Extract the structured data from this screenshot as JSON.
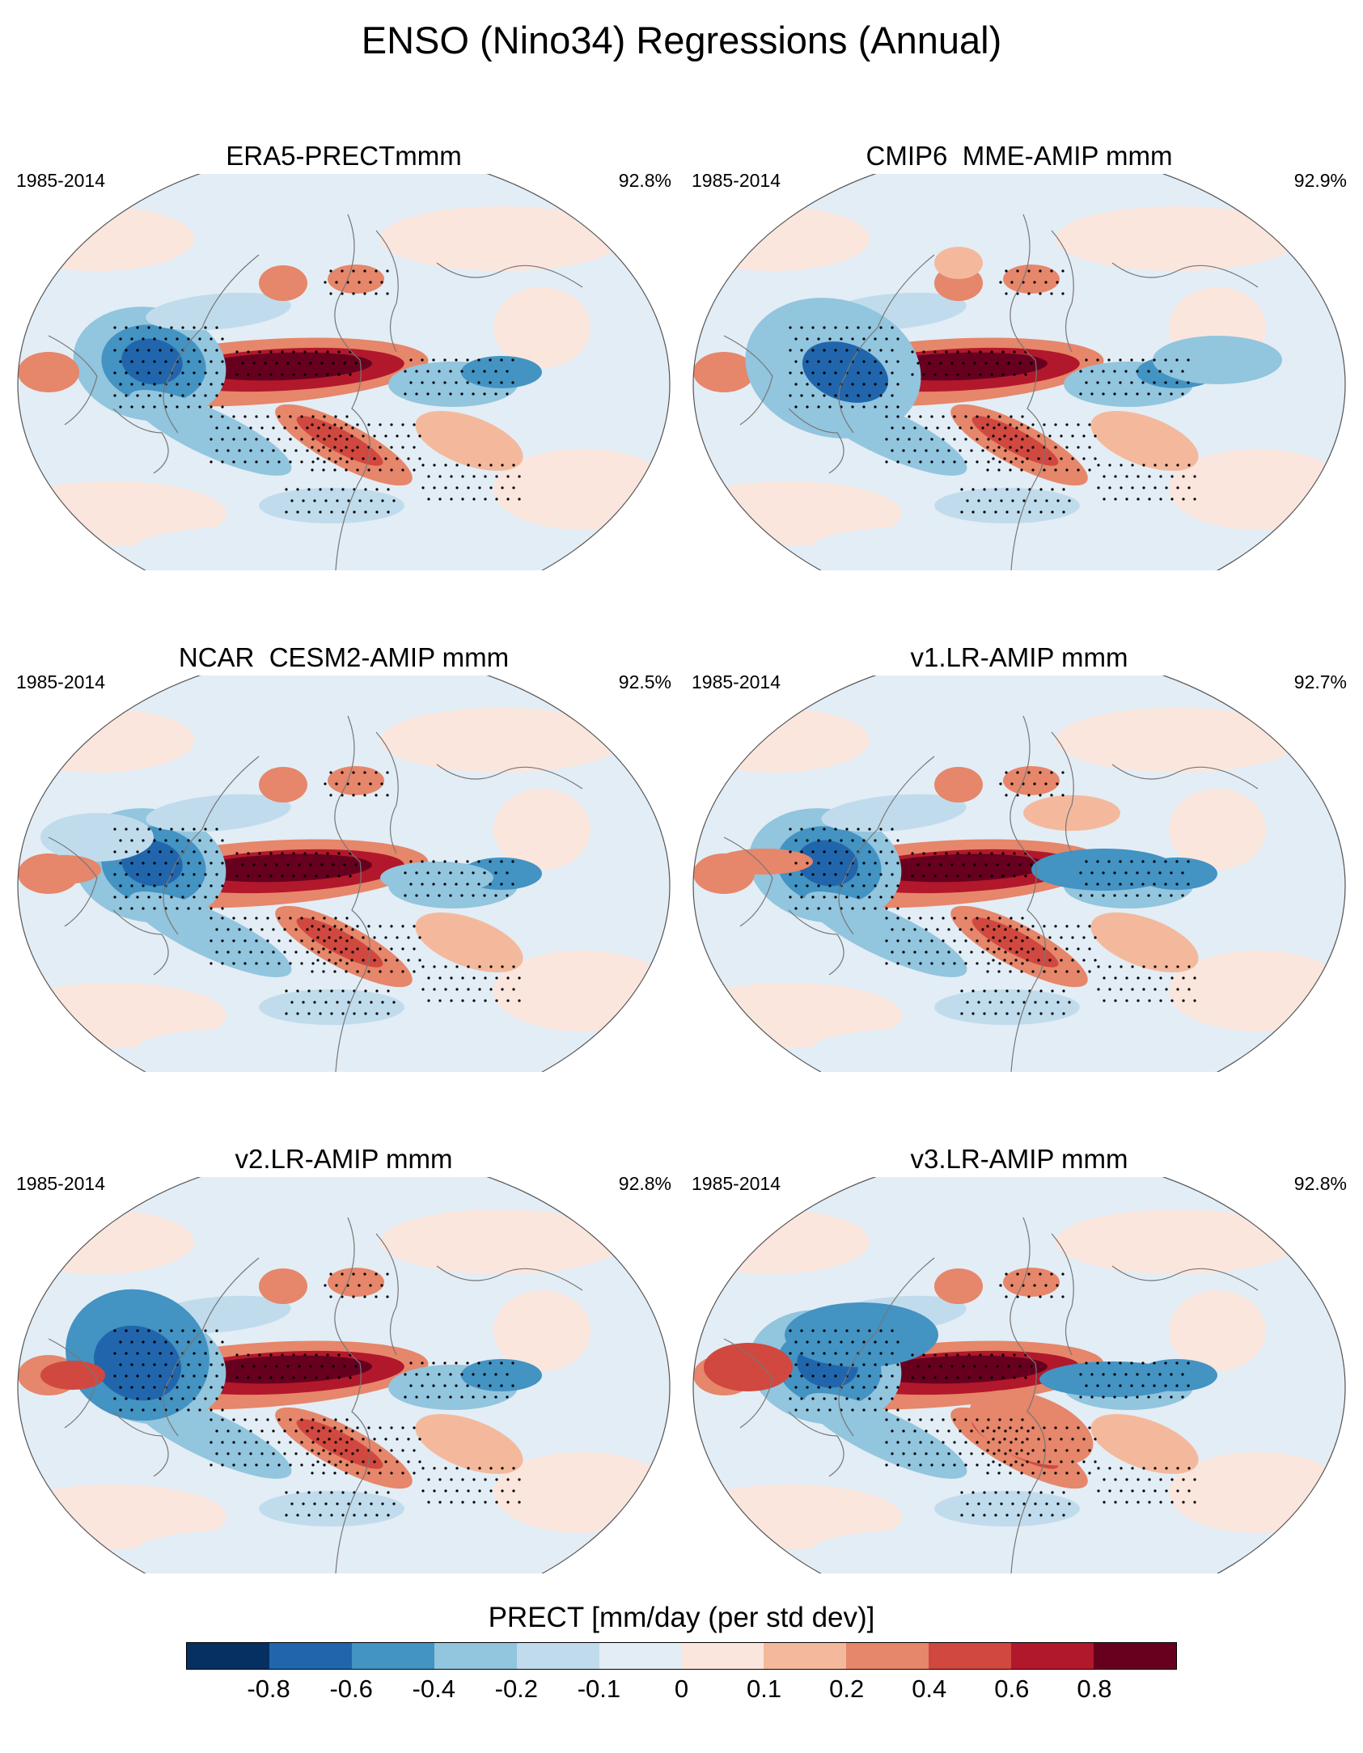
{
  "figure": {
    "title": "ENSO (Nino34) Regressions (Annual)"
  },
  "panels": [
    {
      "title": "ERA5-PRECTmmm",
      "period": "1985-2014",
      "pct": "92.8%",
      "variant": 0
    },
    {
      "title": "CMIP6_MME-AMIP  mmm",
      "period": "1985-2014",
      "pct": "92.9%",
      "variant": 1
    },
    {
      "title": "NCAR_CESM2-AMIP  mmm",
      "period": "1985-2014",
      "pct": "92.5%",
      "variant": 2
    },
    {
      "title": "v1.LR-AMIP  mmm",
      "period": "1985-2014",
      "pct": "92.7%",
      "variant": 3
    },
    {
      "title": "v2.LR-AMIP  mmm",
      "period": "1985-2014",
      "pct": "92.8%",
      "variant": 4
    },
    {
      "title": "v3.LR-AMIP  mmm",
      "period": "1985-2014",
      "pct": "92.8%",
      "variant": 5
    }
  ],
  "colorbar": {
    "label": "PRECT [mm/day (per std dev)]",
    "colors": [
      "#053061",
      "#2166ac",
      "#4393c3",
      "#92c5de",
      "#c0dcec",
      "#e3edf5",
      "#fbe6de",
      "#f4b99d",
      "#e6866a",
      "#d0483f",
      "#b2182b",
      "#67001f"
    ],
    "ticks": [
      "-0.8",
      "-0.6",
      "-0.4",
      "-0.2",
      "-0.1",
      "0",
      "0.1",
      "0.2",
      "0.4",
      "0.6",
      "0.8"
    ]
  }
}
